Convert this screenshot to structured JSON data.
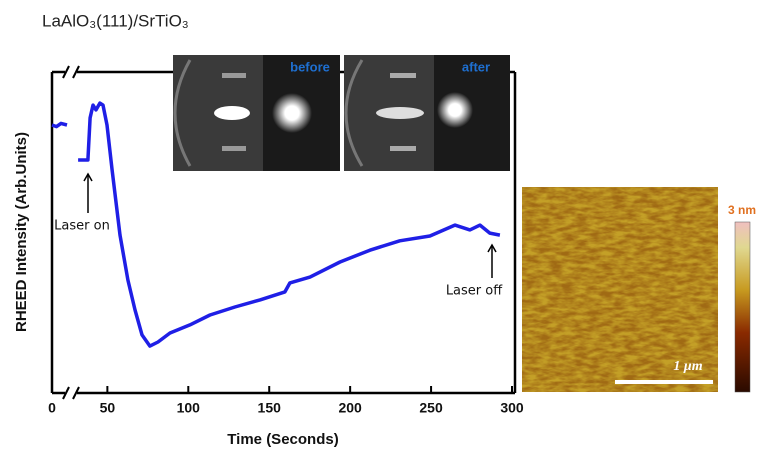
{
  "chart_data": {
    "type": "line",
    "title": "LaAlO₃(111)/SrTiO₃",
    "x_label": "Time  (Seconds)",
    "y_label": "RHEED Intensity  (Arb.Units)",
    "xlim": [
      0,
      300
    ],
    "xbreak": [
      10,
      30
    ],
    "xticks": [
      0,
      50,
      100,
      150,
      200,
      250,
      300
    ],
    "ylim": [
      0,
      10
    ],
    "series": [
      {
        "color": "#1f1fe6",
        "x": [
          0,
          3,
          6,
          10,
          null,
          31.9,
          38,
          39.3,
          41.1,
          43,
          45.4,
          47.3,
          49.8,
          52.9,
          57.8,
          62.7,
          67.1,
          71.4,
          76.3,
          81.3,
          88.7,
          101,
          113.4,
          128.8,
          144.3,
          159.7,
          162.8,
          175.2,
          193.7,
          212.2,
          230.7,
          249.3,
          264.7,
          274,
          280.2,
          286.3,
          292.5
        ],
        "values": [
          8.35,
          8.3,
          8.4,
          8.35,
          null,
          7.26,
          7.26,
          8.57,
          8.97,
          8.82,
          9.03,
          8.97,
          8.35,
          6.95,
          4.92,
          3.52,
          2.59,
          1.81,
          1.46,
          1.59,
          1.87,
          2.12,
          2.43,
          2.68,
          2.9,
          3.15,
          3.43,
          3.61,
          4.08,
          4.45,
          4.74,
          4.89,
          5.23,
          5.08,
          5.23,
          4.98,
          4.92
        ]
      }
    ],
    "annotations": [
      "Laser on",
      "Laser off",
      "before",
      "after",
      "3 nm",
      "1 μm"
    ]
  }
}
